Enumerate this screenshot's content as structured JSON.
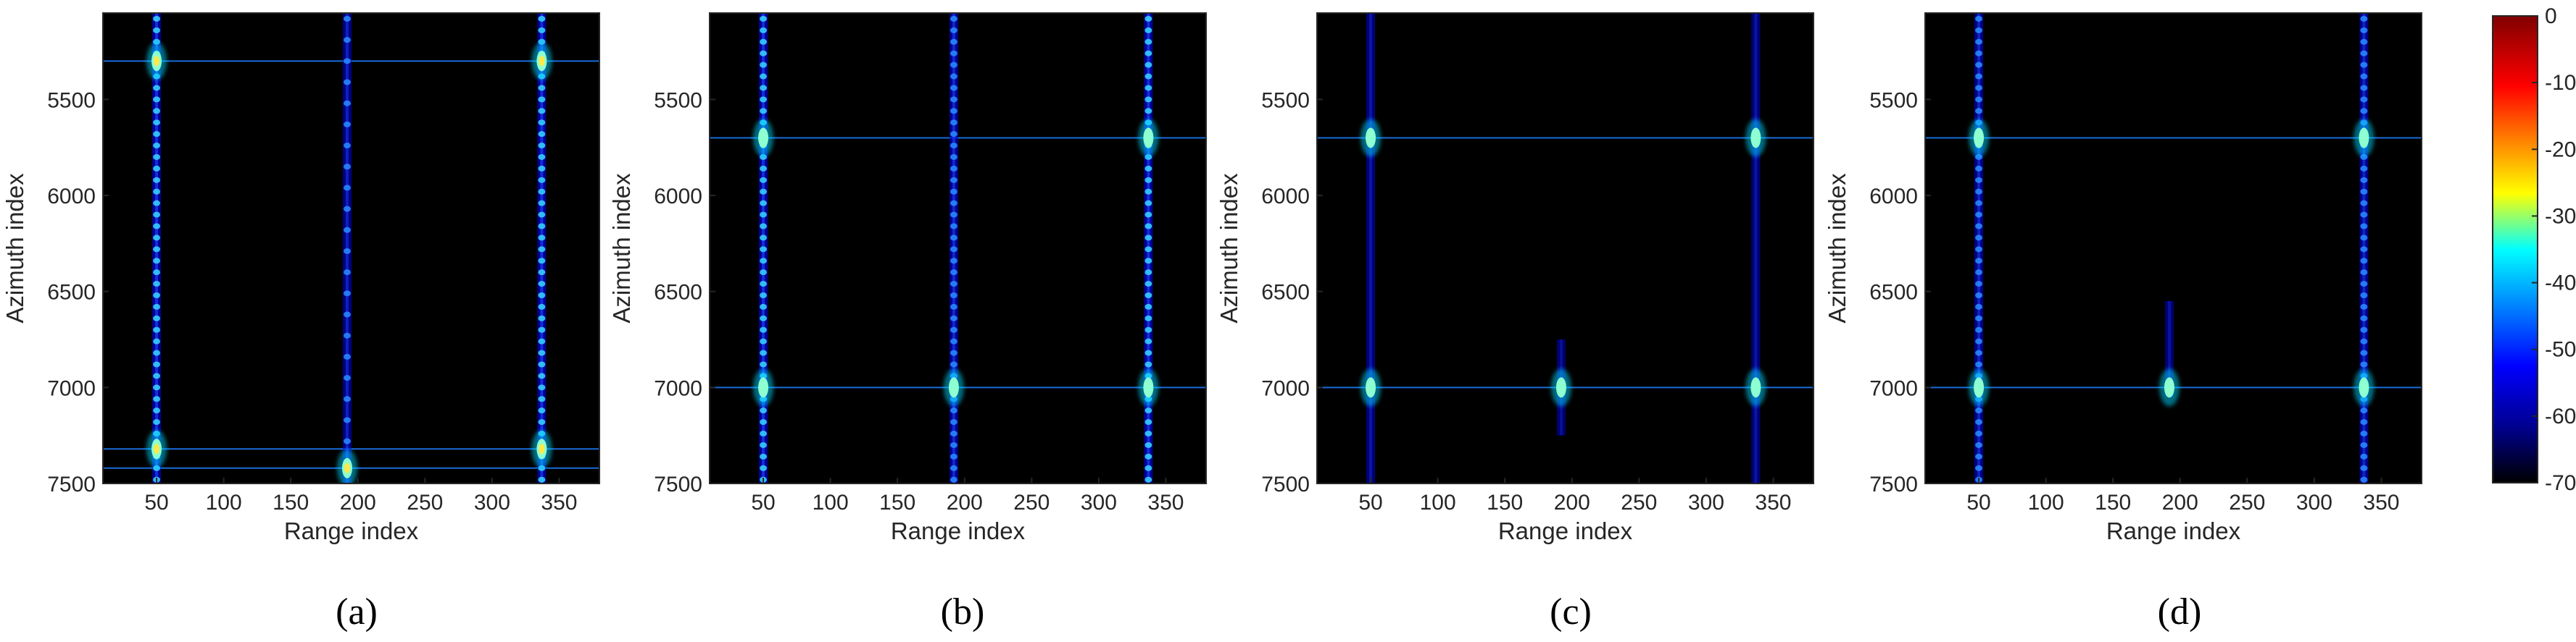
{
  "figure": {
    "captions": [
      "(a)",
      "(b)",
      "(c)",
      "(d)"
    ]
  },
  "colors": {
    "background": "#000000",
    "frame": "#262626",
    "colormap": "jet",
    "colormap_stops": [
      "#00008f",
      "#0000ff",
      "#00ffff",
      "#ffff00",
      "#ff0000",
      "#800000"
    ]
  },
  "colorbar": {
    "label_prefix": "",
    "min": -70,
    "max": 0,
    "ticks": [
      0,
      -10,
      -20,
      -30,
      -40,
      -50,
      -60,
      -70
    ]
  },
  "chart_data": [
    {
      "type": "heatmap",
      "caption": "(a)",
      "xlabel": "Range index",
      "ylabel": "Azimuth index",
      "xlim": [
        10,
        380
      ],
      "ylim": [
        5050,
        7500
      ],
      "xticks": [
        50,
        100,
        150,
        200,
        250,
        300,
        350
      ],
      "yticks": [
        5500,
        6000,
        6500,
        7000,
        7500
      ],
      "y_reversed": true,
      "strong_columns": [
        {
          "x": 50,
          "intensity": 0.7,
          "dots": true
        },
        {
          "x": 192,
          "intensity": 0.5,
          "dots": true,
          "sparse": true
        },
        {
          "x": 337,
          "intensity": 0.7,
          "dots": true
        }
      ],
      "horizontal_lines": [
        5300,
        7320,
        7420
      ],
      "bright_points": [
        {
          "x": 50,
          "y": 5300,
          "db": -30
        },
        {
          "x": 337,
          "y": 5300,
          "db": -30
        },
        {
          "x": 50,
          "y": 7320,
          "db": -30
        },
        {
          "x": 337,
          "y": 7320,
          "db": -30
        },
        {
          "x": 192,
          "y": 7420,
          "db": -30
        }
      ]
    },
    {
      "type": "heatmap",
      "caption": "(b)",
      "xlabel": "Range index",
      "ylabel": "Azimuth index",
      "xlim": [
        10,
        380
      ],
      "ylim": [
        5050,
        7500
      ],
      "xticks": [
        50,
        100,
        150,
        200,
        250,
        300,
        350
      ],
      "yticks": [
        5500,
        6000,
        6500,
        7000,
        7500
      ],
      "y_reversed": true,
      "strong_columns": [
        {
          "x": 50,
          "intensity": 0.7,
          "dots": true
        },
        {
          "x": 192,
          "intensity": 0.6,
          "dots": true
        },
        {
          "x": 337,
          "intensity": 0.7,
          "dots": true
        }
      ],
      "horizontal_lines": [
        5700,
        7000
      ],
      "bright_points": [
        {
          "x": 50,
          "y": 5700,
          "db": -40
        },
        {
          "x": 337,
          "y": 5700,
          "db": -40
        },
        {
          "x": 50,
          "y": 7000,
          "db": -40
        },
        {
          "x": 192,
          "y": 7000,
          "db": -40
        },
        {
          "x": 337,
          "y": 7000,
          "db": -40
        }
      ]
    },
    {
      "type": "heatmap",
      "caption": "(c)",
      "xlabel": "Range index",
      "ylabel": "Azimuth index",
      "xlim": [
        10,
        380
      ],
      "ylim": [
        5050,
        7500
      ],
      "xticks": [
        50,
        100,
        150,
        200,
        250,
        300,
        350
      ],
      "yticks": [
        5500,
        6000,
        6500,
        7000,
        7500
      ],
      "y_reversed": true,
      "strong_columns": [
        {
          "x": 50,
          "intensity": 0.35,
          "dots": false
        },
        {
          "x": 192,
          "intensity": 0.25,
          "dots": false,
          "partial_from": 7000
        },
        {
          "x": 337,
          "intensity": 0.35,
          "dots": false
        }
      ],
      "horizontal_lines": [
        5700,
        7000
      ],
      "bright_points": [
        {
          "x": 50,
          "y": 5700,
          "db": -45
        },
        {
          "x": 337,
          "y": 5700,
          "db": -45
        },
        {
          "x": 50,
          "y": 7000,
          "db": -45
        },
        {
          "x": 192,
          "y": 7000,
          "db": -45
        },
        {
          "x": 337,
          "y": 7000,
          "db": -45
        }
      ]
    },
    {
      "type": "heatmap",
      "caption": "(d)",
      "xlabel": "Range index",
      "ylabel": "Azimuth index",
      "xlim": [
        10,
        380
      ],
      "ylim": [
        5050,
        7500
      ],
      "xticks": [
        50,
        100,
        150,
        200,
        250,
        300,
        350
      ],
      "yticks": [
        5500,
        6000,
        6500,
        7000,
        7500
      ],
      "y_reversed": true,
      "strong_columns": [
        {
          "x": 50,
          "intensity": 0.55,
          "dots": true
        },
        {
          "x": 192,
          "intensity": 0.3,
          "dots": false,
          "partial_from": 6800
        },
        {
          "x": 337,
          "intensity": 0.55,
          "dots": true
        }
      ],
      "horizontal_lines": [
        5700,
        7000
      ],
      "bright_points": [
        {
          "x": 50,
          "y": 5700,
          "db": -42
        },
        {
          "x": 337,
          "y": 5700,
          "db": -42
        },
        {
          "x": 50,
          "y": 7000,
          "db": -42
        },
        {
          "x": 192,
          "y": 7000,
          "db": -42
        },
        {
          "x": 337,
          "y": 7000,
          "db": -42
        }
      ]
    }
  ]
}
